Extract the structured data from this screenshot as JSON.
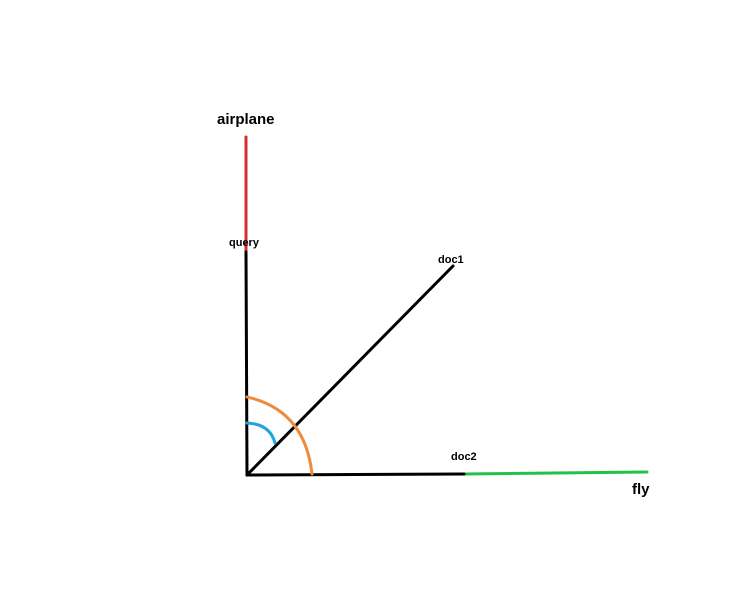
{
  "labels": {
    "airplane_axis": "airplane",
    "fly_axis": "fly",
    "query": "query",
    "doc1": "doc1",
    "doc2": "doc2"
  },
  "colors": {
    "airplane_axis": "#d32f2f",
    "fly_axis": "#22c24a",
    "vector": "#000000",
    "angle_query_doc2": "#f08a3c",
    "angle_query_doc1": "#1ea7d8"
  }
}
